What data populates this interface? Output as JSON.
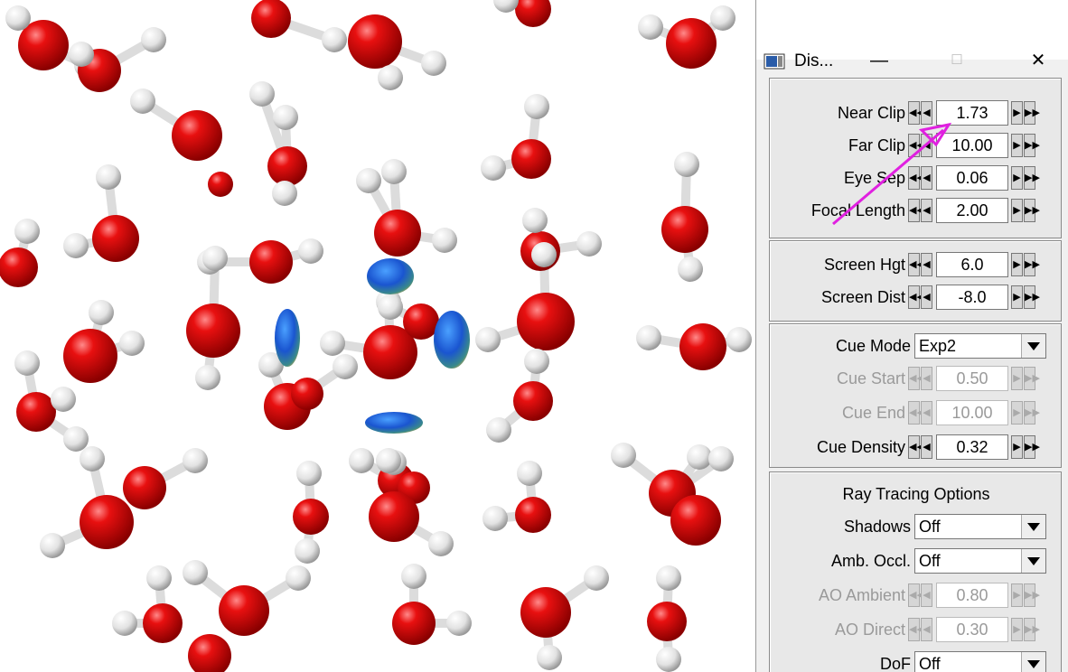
{
  "window": {
    "title": "Dis...",
    "minimize": "—",
    "maximize": "☐",
    "close": "✕"
  },
  "clip": [
    {
      "label": "Near Clip",
      "value": "1.73"
    },
    {
      "label": "Far Clip",
      "value": "10.00"
    },
    {
      "label": "Eye Sep",
      "value": "0.06"
    },
    {
      "label": "Focal Length",
      "value": "2.00"
    }
  ],
  "screen": [
    {
      "label": "Screen Hgt",
      "value": "6.0"
    },
    {
      "label": "Screen Dist",
      "value": "-8.0"
    }
  ],
  "cue": {
    "mode_label": "Cue Mode",
    "mode_value": "Exp2",
    "start_label": "Cue Start",
    "start_value": "0.50",
    "end_label": "Cue End",
    "end_value": "10.00",
    "density_label": "Cue Density",
    "density_value": "0.32"
  },
  "ray": {
    "heading": "Ray Tracing Options",
    "shadows_label": "Shadows",
    "shadows_value": "Off",
    "ao_label": "Amb. Occl.",
    "ao_value": "Off",
    "ao_ambient_label": "AO Ambient",
    "ao_ambient_value": "0.80",
    "ao_direct_label": "AO Direct",
    "ao_direct_value": "0.30",
    "dof_label": "DoF",
    "dof_value": "Off"
  },
  "arrows": {
    "fast_left": "◀◀",
    "left": "◀",
    "right": "▶",
    "fast_right": "▶▶"
  },
  "colors": {
    "oxygen": "#e00000",
    "hydrogen": "#f2f2f2",
    "surface": "#1f5fd0",
    "annotation": "#e020e0"
  }
}
